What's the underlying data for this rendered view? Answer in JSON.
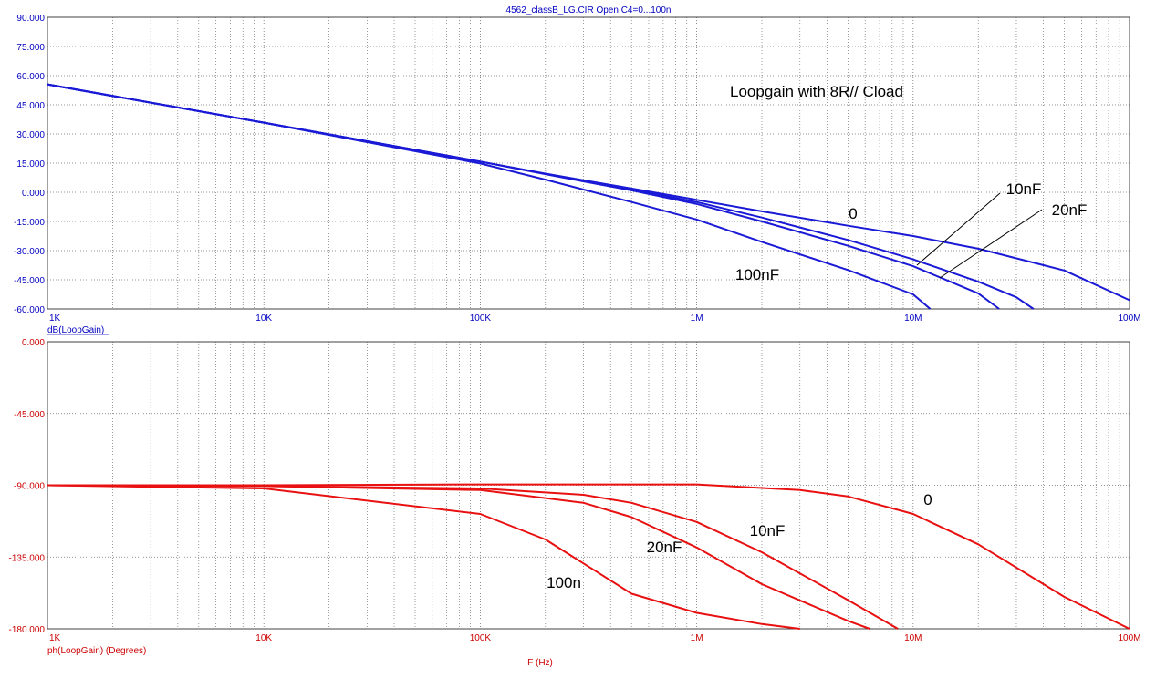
{
  "window_title": "4562_classB_LG.CIR Open C4=0...100n",
  "x_axis_label": "F (Hz)",
  "colors": {
    "magnitude": "#1a1ad6",
    "phase": "#e81010",
    "grid": "#707070",
    "magnitude_text": "#0000c0",
    "phase_text": "#cc0000"
  },
  "chart_data": [
    {
      "type": "line",
      "xscale": "log",
      "xlim": [
        1000,
        100000000
      ],
      "ylim": [
        -60,
        90
      ],
      "y_ticks": [
        90,
        75,
        60,
        45,
        30,
        15,
        0,
        -15,
        -30,
        -45,
        -60
      ],
      "y_tick_labels": [
        "90.000",
        "75.000",
        "60.000",
        "45.000",
        "30.000",
        "15.000",
        "0.000",
        "-15.000",
        "-30.000",
        "-45.000",
        "-60.000"
      ],
      "x_ticks": [
        1000,
        10000,
        100000,
        1000000,
        10000000,
        100000000
      ],
      "x_tick_labels": [
        "1K",
        "10K",
        "100K",
        "1M",
        "10M",
        "100M"
      ],
      "ylabel": "dB(LoopGain)",
      "grid": true,
      "annotation": "Loopgain with 8R// Cload",
      "series": [
        {
          "name": "0",
          "x": [
            1000,
            10000,
            100000,
            200000,
            500000,
            1000000,
            2000000,
            5000000,
            10000000,
            20000000,
            50000000,
            100000000
          ],
          "y": [
            55.5,
            35.8,
            15.8,
            9.6,
            1.9,
            -3.9,
            -9.8,
            -17.2,
            -22.5,
            -29.0,
            -40.2,
            -55.5
          ]
        },
        {
          "name": "10nF",
          "x": [
            1000,
            10000,
            100000,
            200000,
            500000,
            1000000,
            2000000,
            5000000,
            10000000,
            20000000,
            30000000,
            36000000
          ],
          "y": [
            55.5,
            35.8,
            15.8,
            9.5,
            1.5,
            -5.0,
            -13.0,
            -24.5,
            -34.5,
            -46.0,
            -54.0,
            -60.0
          ]
        },
        {
          "name": "20nF",
          "x": [
            1000,
            10000,
            100000,
            200000,
            500000,
            1000000,
            2000000,
            5000000,
            10000000,
            20000000,
            25000000
          ],
          "y": [
            55.5,
            35.8,
            15.8,
            9.3,
            1.0,
            -6.0,
            -15.0,
            -27.5,
            -38.0,
            -52.0,
            -60.0
          ]
        },
        {
          "name": "100nF",
          "x": [
            1000,
            10000,
            100000,
            200000,
            500000,
            1000000,
            2000000,
            5000000,
            10000000,
            12000000
          ],
          "y": [
            55.5,
            35.8,
            14.8,
            6.5,
            -5.0,
            -14.0,
            -25.5,
            -40.0,
            -52.5,
            -60.0
          ]
        }
      ],
      "labels": [
        {
          "text": "0",
          "series": "0"
        },
        {
          "text": "10nF",
          "series": "10nF"
        },
        {
          "text": "20nF",
          "series": "20nF"
        },
        {
          "text": "100nF",
          "series": "100nF"
        }
      ]
    },
    {
      "type": "line",
      "xscale": "log",
      "xlim": [
        1000,
        100000000
      ],
      "ylim": [
        -180,
        0
      ],
      "y_ticks": [
        0,
        -45,
        -90,
        -135,
        -180
      ],
      "y_tick_labels": [
        "0.000",
        "-45.000",
        "-90.000",
        "-135.000",
        "-180.000"
      ],
      "x_ticks": [
        1000,
        10000,
        100000,
        1000000,
        10000000,
        100000000
      ],
      "x_tick_labels": [
        "1K",
        "10K",
        "100K",
        "1M",
        "10M",
        "100M"
      ],
      "ylabel": "ph(LoopGain) (Degrees)",
      "grid": true,
      "series": [
        {
          "name": "0",
          "x": [
            1000,
            10000,
            100000,
            1000000,
            3000000,
            5000000,
            10000000,
            20000000,
            50000000,
            100000000
          ],
          "y": [
            -90.0,
            -90.0,
            -89.5,
            -89.5,
            -93.0,
            -97.0,
            -108.0,
            -127.0,
            -160.0,
            -180.0
          ]
        },
        {
          "name": "10nF",
          "x": [
            1000,
            10000,
            100000,
            300000,
            500000,
            1000000,
            2000000,
            5000000,
            8500000
          ],
          "y": [
            -90.0,
            -90.5,
            -92.0,
            -96.0,
            -101.0,
            -113.0,
            -132.0,
            -162.0,
            -180.0
          ]
        },
        {
          "name": "20nF",
          "x": [
            1000,
            10000,
            100000,
            300000,
            500000,
            1000000,
            2000000,
            5000000,
            6300000
          ],
          "y": [
            -90.0,
            -90.5,
            -93.0,
            -101.0,
            -110.0,
            -129.0,
            -152.0,
            -175.0,
            -180.0
          ]
        },
        {
          "name": "100n",
          "x": [
            1000,
            10000,
            100000,
            200000,
            300000,
            500000,
            1000000,
            2000000,
            3000000
          ],
          "y": [
            -90.0,
            -92.0,
            -108.0,
            -124.0,
            -139.0,
            -158.0,
            -170.0,
            -177.0,
            -180.0
          ]
        }
      ],
      "labels": [
        {
          "text": "0",
          "series": "0"
        },
        {
          "text": "10nF",
          "series": "10nF"
        },
        {
          "text": "20nF",
          "series": "20nF"
        },
        {
          "text": "100n",
          "series": "100n"
        }
      ]
    }
  ]
}
